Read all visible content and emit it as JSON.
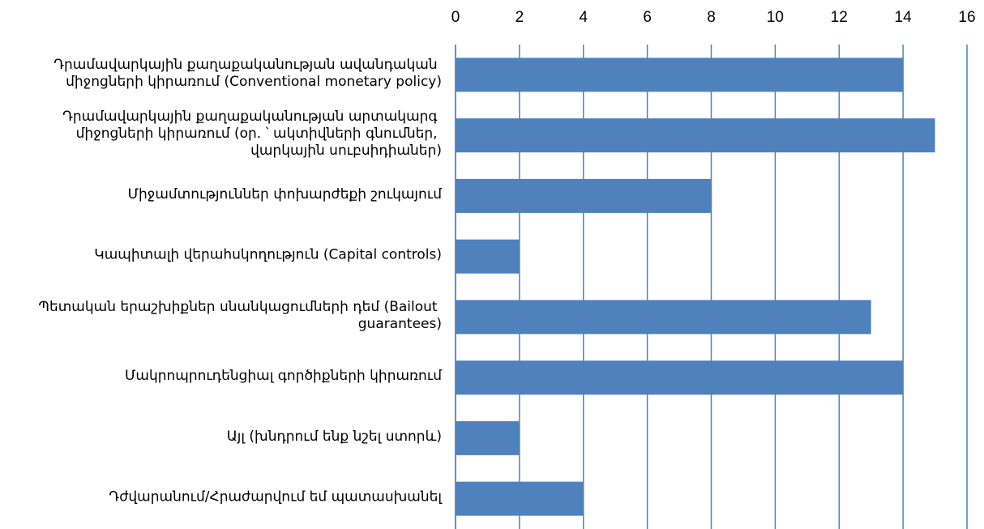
{
  "chart_data": {
    "type": "hbar",
    "categories": [
      "Դրամավարկային քաղաքականության ավանդական միջոցների կիրառում (Conventional monetary policy)",
      "Դրամավարկային քաղաքականության արտակարգ միջոցների կիրառում (օր. ՝ ակտիվների գնումներ, վարկային սուբսիդիաներ)",
      "Միջամտություններ փոխարժեքի շուկայում",
      "Կապիտալի վերահսկողություն (Capital controls)",
      "Պետական երաշխիքներ սնանկացումների դեմ (Bailout guarantees)",
      "Մակրոպրուդենցիալ գործիքների կիրառում",
      "Այլ (խնդրում ենք նշել ստորև)",
      "Դժվարանում/Հրաժարվում եմ պատասխանել"
    ],
    "values": [
      14,
      15,
      8,
      2,
      13,
      14,
      2,
      4
    ],
    "color": "#4f81bd",
    "xlim": [
      0,
      16
    ],
    "xticks": [
      0,
      2,
      4,
      6,
      8,
      10,
      12,
      14,
      16
    ],
    "grid": true
  }
}
